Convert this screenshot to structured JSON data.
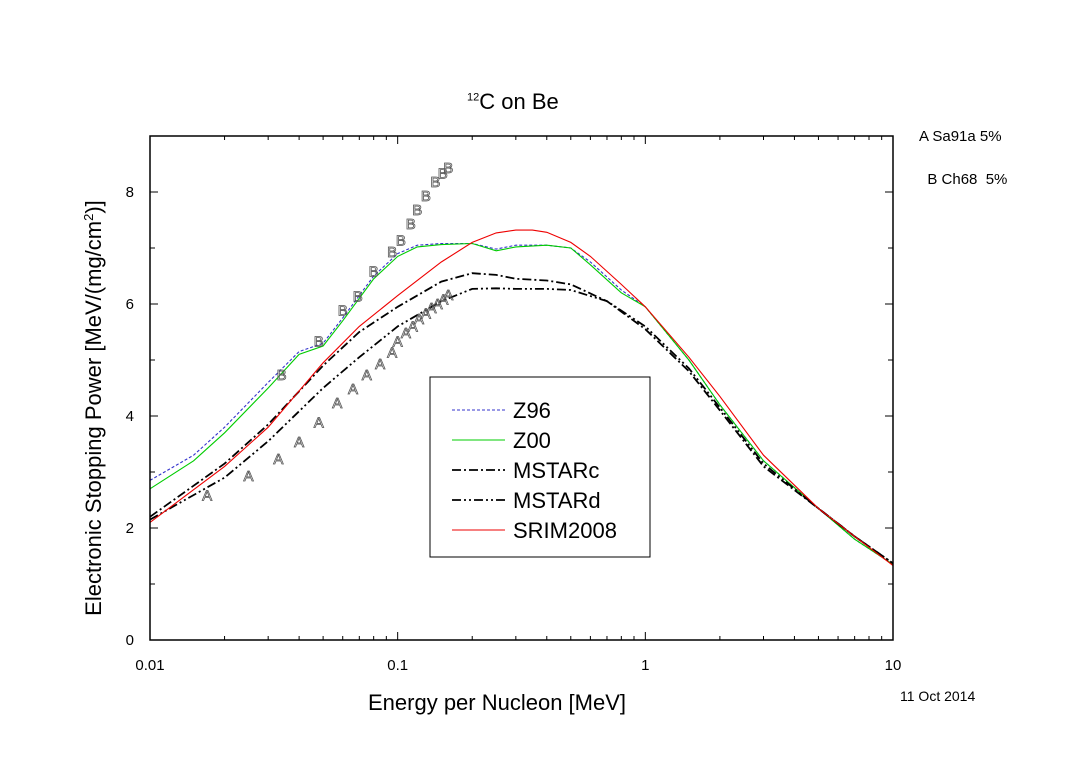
{
  "chart_data": {
    "type": "line",
    "title_prefix": "12",
    "title": "C on Be",
    "xlabel": "Energy per Nucleon [MeV]",
    "ylabel": "Electronic Stopping Power [MeV/(mg/cm",
    "ylabel_sup": "2",
    "ylabel_end": ")]",
    "xscale": "log",
    "xlim": [
      0.01,
      10
    ],
    "ylim": [
      0,
      9
    ],
    "xticks": [
      {
        "v": 0.01,
        "label": "0.01"
      },
      {
        "v": 0.1,
        "label": "0.1"
      },
      {
        "v": 1,
        "label": "1"
      },
      {
        "v": 10,
        "label": "10"
      }
    ],
    "yticks": [
      {
        "v": 0,
        "label": "0"
      },
      {
        "v": 2,
        "label": "2"
      },
      {
        "v": 4,
        "label": "4"
      },
      {
        "v": 6,
        "label": "6"
      },
      {
        "v": 8,
        "label": "8"
      }
    ],
    "legend_position": "center",
    "series": [
      {
        "name": "Z96",
        "color": "#3333cc",
        "dash": "3,2",
        "x": [
          0.01,
          0.015,
          0.02,
          0.03,
          0.04,
          0.05,
          0.06,
          0.08,
          0.1,
          0.12,
          0.15,
          0.2,
          0.25,
          0.3,
          0.4,
          0.5,
          0.6,
          0.8,
          1,
          1.5,
          2,
          3,
          5,
          7,
          10
        ],
        "y": [
          2.85,
          3.3,
          3.8,
          4.6,
          5.15,
          5.3,
          5.75,
          6.5,
          6.9,
          7.05,
          7.08,
          7.08,
          6.98,
          7.05,
          7.05,
          7.0,
          6.75,
          6.25,
          5.95,
          5.0,
          4.2,
          3.2,
          2.35,
          1.8,
          1.35
        ]
      },
      {
        "name": "Z00",
        "color": "#00cc00",
        "dash": "",
        "x": [
          0.01,
          0.015,
          0.02,
          0.03,
          0.04,
          0.05,
          0.06,
          0.08,
          0.1,
          0.12,
          0.15,
          0.2,
          0.25,
          0.3,
          0.4,
          0.5,
          0.6,
          0.8,
          1,
          1.5,
          2,
          3,
          5,
          7,
          10
        ],
        "y": [
          2.7,
          3.2,
          3.7,
          4.5,
          5.1,
          5.25,
          5.7,
          6.45,
          6.85,
          7.02,
          7.06,
          7.08,
          6.95,
          7.02,
          7.05,
          7.0,
          6.7,
          6.2,
          5.95,
          5.0,
          4.2,
          3.2,
          2.35,
          1.8,
          1.35
        ]
      },
      {
        "name": "MSTARc",
        "color": "#000000",
        "dash": "9,3,2,3",
        "x": [
          0.01,
          0.02,
          0.03,
          0.05,
          0.07,
          0.1,
          0.15,
          0.2,
          0.25,
          0.3,
          0.4,
          0.5,
          0.7,
          1,
          1.5,
          2,
          3,
          5,
          7,
          10
        ],
        "y": [
          2.2,
          3.15,
          3.85,
          4.9,
          5.5,
          5.95,
          6.4,
          6.55,
          6.52,
          6.45,
          6.42,
          6.35,
          6.05,
          5.55,
          4.8,
          4.1,
          3.1,
          2.35,
          1.85,
          1.37
        ]
      },
      {
        "name": "MSTARd",
        "color": "#000000",
        "dash": "9,3,2,3,2,3",
        "x": [
          0.01,
          0.02,
          0.03,
          0.05,
          0.07,
          0.1,
          0.15,
          0.2,
          0.25,
          0.3,
          0.4,
          0.5,
          0.7,
          1,
          1.5,
          2,
          3,
          5,
          7,
          10
        ],
        "y": [
          2.15,
          2.9,
          3.55,
          4.5,
          5.05,
          5.6,
          6.05,
          6.27,
          6.28,
          6.27,
          6.27,
          6.25,
          6.05,
          5.6,
          4.85,
          4.15,
          3.15,
          2.35,
          1.85,
          1.37
        ]
      },
      {
        "name": "SRIM2008",
        "color": "#ee0000",
        "dash": "",
        "x": [
          0.01,
          0.02,
          0.03,
          0.05,
          0.07,
          0.1,
          0.15,
          0.2,
          0.25,
          0.3,
          0.35,
          0.4,
          0.5,
          0.6,
          0.8,
          1,
          1.5,
          2,
          3,
          5,
          7,
          10
        ],
        "y": [
          2.1,
          3.1,
          3.8,
          4.95,
          5.6,
          6.15,
          6.75,
          7.1,
          7.27,
          7.32,
          7.32,
          7.28,
          7.1,
          6.85,
          6.35,
          5.95,
          5.05,
          4.35,
          3.3,
          2.35,
          1.85,
          1.33
        ]
      }
    ],
    "markers": [
      {
        "symbol": "A",
        "legend": "A Sa91a 5%",
        "color": "#555555",
        "x": [
          0.017,
          0.025,
          0.033,
          0.04,
          0.048,
          0.057,
          0.066,
          0.075,
          0.085,
          0.095,
          0.1,
          0.108,
          0.115,
          0.122,
          0.13,
          0.137,
          0.145,
          0.153,
          0.16
        ],
        "y": [
          2.6,
          2.95,
          3.25,
          3.55,
          3.9,
          4.25,
          4.5,
          4.75,
          4.95,
          5.15,
          5.35,
          5.5,
          5.62,
          5.75,
          5.85,
          5.95,
          6.02,
          6.1,
          6.18
        ]
      },
      {
        "symbol": "B",
        "legend": "B Ch68  5%",
        "color": "#555555",
        "x": [
          0.034,
          0.048,
          0.06,
          0.069,
          0.08,
          0.095,
          0.103,
          0.113,
          0.12,
          0.13,
          0.142,
          0.152,
          0.16
        ],
        "y": [
          4.75,
          5.35,
          5.9,
          6.15,
          6.6,
          6.95,
          7.15,
          7.45,
          7.7,
          7.95,
          8.2,
          8.35,
          8.45
        ]
      }
    ]
  },
  "date": "11 Oct 2014"
}
